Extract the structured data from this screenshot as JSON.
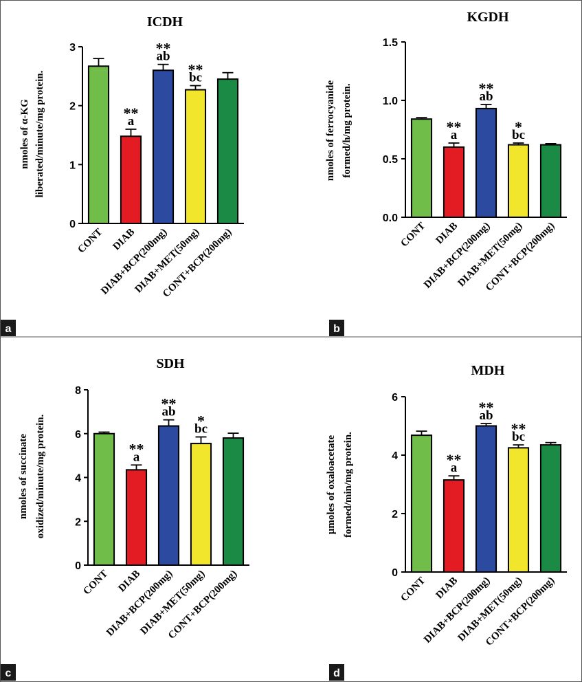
{
  "chart_data": [
    {
      "panel": "a",
      "type": "bar",
      "title": "ICDH",
      "ylabel_lines": [
        "nmoles of α-KG",
        "liberated/minute/mg protein."
      ],
      "ylim": [
        0,
        3
      ],
      "yticks": [
        0,
        1,
        2,
        3
      ],
      "ytick_labels": [
        "0",
        "1",
        "2",
        "3"
      ],
      "categories": [
        "CONT",
        "DIAB",
        "DIAB+BCP(200mg)",
        "DIAB+MET(50mg)",
        "CONT+BCP(200mg)"
      ],
      "values": [
        2.67,
        1.48,
        2.6,
        2.27,
        2.45
      ],
      "errors": [
        0.13,
        0.12,
        0.1,
        0.07,
        0.11
      ],
      "annotations": [
        [],
        [
          "**",
          "a"
        ],
        [
          "**",
          "ab"
        ],
        [
          "**",
          "bc"
        ],
        []
      ]
    },
    {
      "panel": "b",
      "type": "bar",
      "title": "KGDH",
      "ylabel_lines": [
        "nmoles of ferrocyanide",
        "formed/h/mg protein."
      ],
      "ylim": [
        0,
        1.5
      ],
      "yticks": [
        0,
        0.5,
        1.0,
        1.5
      ],
      "ytick_labels": [
        "0.0",
        "0.5",
        "1.0",
        "1.5"
      ],
      "categories": [
        "CONT",
        "DIAB",
        "DIAB+BCP(200mg)",
        "DIAB+MET(50mg)",
        "CONT+BCP(200mg)"
      ],
      "values": [
        0.84,
        0.6,
        0.93,
        0.62,
        0.62
      ],
      "errors": [
        0.012,
        0.035,
        0.035,
        0.015,
        0.01
      ],
      "annotations": [
        [],
        [
          "**",
          "a"
        ],
        [
          "**",
          "ab"
        ],
        [
          "*",
          "bc"
        ],
        []
      ]
    },
    {
      "panel": "c",
      "type": "bar",
      "title": "SDH",
      "ylabel_lines": [
        "nmoles of succinate",
        "oxidized/minute/mg protein."
      ],
      "ylim": [
        0,
        8
      ],
      "yticks": [
        0,
        2,
        4,
        6,
        8
      ],
      "ytick_labels": [
        "0",
        "2",
        "4",
        "6",
        "8"
      ],
      "categories": [
        "CONT",
        "DIAB",
        "DIAB+BCP(200mg)",
        "DIAB+MET(50mg)",
        "CONT+BCP(200mg)"
      ],
      "values": [
        6.0,
        4.35,
        6.35,
        5.55,
        5.8
      ],
      "errors": [
        0.07,
        0.22,
        0.28,
        0.3,
        0.22
      ],
      "annotations": [
        [],
        [
          "**",
          "a"
        ],
        [
          "**",
          "ab"
        ],
        [
          "*",
          "bc"
        ],
        []
      ]
    },
    {
      "panel": "d",
      "type": "bar",
      "title": "MDH",
      "ylabel_lines": [
        "µmoles of oxaloacetate",
        "formed/min/mg protein."
      ],
      "ylim": [
        0,
        6
      ],
      "yticks": [
        0,
        2,
        4,
        6
      ],
      "ytick_labels": [
        "0",
        "2",
        "4",
        "6"
      ],
      "categories": [
        "CONT",
        "DIAB",
        "DIAB+BCP(200mg)",
        "DIAB+MET(50mg)",
        "CONT+BCP(200mg)"
      ],
      "values": [
        4.68,
        3.15,
        5.0,
        4.25,
        4.35
      ],
      "errors": [
        0.14,
        0.14,
        0.08,
        0.1,
        0.08
      ],
      "annotations": [
        [],
        [
          "**",
          "a"
        ],
        [
          "**",
          "ab"
        ],
        [
          "**",
          "bc"
        ],
        []
      ]
    }
  ],
  "bar_colors": [
    "#70bd4a",
    "#e31b23",
    "#2b4aa0",
    "#f2e62c",
    "#1a8a44"
  ],
  "panel_labels": [
    "a",
    "b",
    "c",
    "d"
  ]
}
